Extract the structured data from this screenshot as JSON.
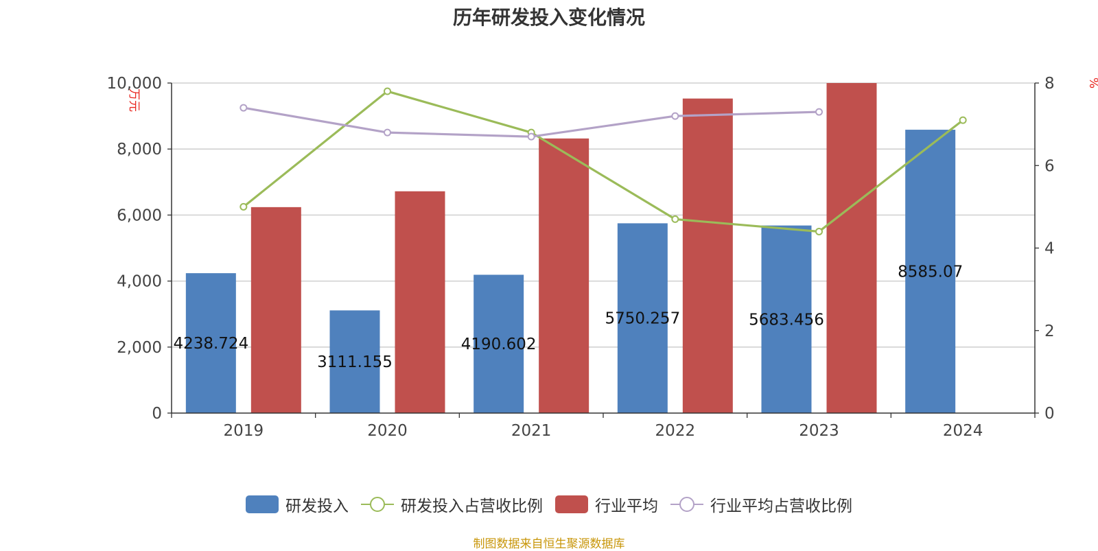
{
  "chart_data": {
    "type": "bar",
    "title": "历年研发投入变化情况",
    "source": "制图数据来自恒生聚源数据库",
    "categories": [
      "2019",
      "2020",
      "2021",
      "2022",
      "2023",
      "2024"
    ],
    "left_axis": {
      "unit": "万元",
      "min": 0,
      "max": 10000,
      "ticks": [
        "0",
        "2,000",
        "4,000",
        "6,000",
        "8,000",
        "10,000"
      ]
    },
    "right_axis": {
      "unit": "%",
      "min": 0,
      "max": 8,
      "ticks": [
        "0",
        "2",
        "4",
        "6",
        "8"
      ]
    },
    "series": [
      {
        "name": "研发投入",
        "type": "bar",
        "axis": "left",
        "color": "#4f81bd",
        "values": [
          4238.724,
          3111.155,
          4190.602,
          5750.257,
          5683.456,
          8585.07
        ],
        "labels": [
          "4238.724",
          "3111.155",
          "4190.602",
          "5750.257",
          "5683.456",
          "8585.07"
        ]
      },
      {
        "name": "研发投入占营收比例",
        "type": "line",
        "axis": "right",
        "color": "#9bbb59",
        "values": [
          5.0,
          7.8,
          6.8,
          4.7,
          4.4,
          7.1
        ]
      },
      {
        "name": "行业平均",
        "type": "bar",
        "axis": "left",
        "color": "#c0504d",
        "values": [
          6240,
          6720,
          8320,
          9530,
          10000,
          null
        ]
      },
      {
        "name": "行业平均占营收比例",
        "type": "line",
        "axis": "right",
        "color": "#b3a2c7",
        "values": [
          7.4,
          6.8,
          6.7,
          7.2,
          7.3,
          null
        ]
      }
    ],
    "grid": true,
    "legend": "bottom"
  }
}
